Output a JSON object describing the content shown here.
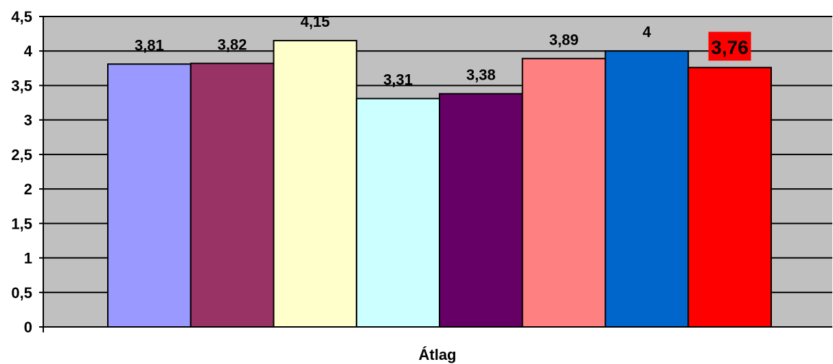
{
  "chart_data": {
    "type": "bar",
    "xlabel": "Átlag",
    "ylabel": "",
    "ylim": [
      0,
      4.5
    ],
    "yticks": [
      "0",
      "0,5",
      "1",
      "1,5",
      "2",
      "2,5",
      "3",
      "3,5",
      "4",
      "4,5"
    ],
    "ytick_values": [
      0,
      0.5,
      1,
      1.5,
      2,
      2.5,
      3,
      3.5,
      4,
      4.5
    ],
    "grid": true,
    "background": "#c0c0c0",
    "series": [
      {
        "values": [
          3.81
        ],
        "label": "3,81",
        "color": "#9999ff"
      },
      {
        "values": [
          3.82
        ],
        "label": "3,82",
        "color": "#993366"
      },
      {
        "values": [
          4.15
        ],
        "label": "4,15",
        "color": "#ffffcc"
      },
      {
        "values": [
          3.31
        ],
        "label": "3,31",
        "color": "#ccffff"
      },
      {
        "values": [
          3.38
        ],
        "label": "3,38",
        "color": "#660066"
      },
      {
        "values": [
          3.89
        ],
        "label": "3,89",
        "color": "#ff8080"
      },
      {
        "values": [
          4.0
        ],
        "label": "4",
        "color": "#0066cc"
      },
      {
        "values": [
          3.76
        ],
        "label": "3,76",
        "color": "#ff0000",
        "highlight": true
      }
    ]
  }
}
